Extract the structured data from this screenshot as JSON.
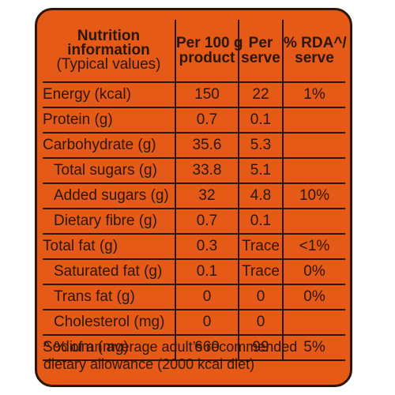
{
  "header": {
    "nutrient_line1": "Nutrition",
    "nutrient_line2": "information",
    "nutrient_line3": "(Typical values)",
    "per100_line1": "Per 100 g",
    "per100_line2": "product",
    "perserve_line1": "Per",
    "perserve_line2": "serve",
    "rda_line1": "% RDA^/",
    "rda_line2": "serve"
  },
  "rows": [
    {
      "name": "Energy (kcal)",
      "per100": "150",
      "perserve": "22",
      "rda": "1%"
    },
    {
      "name": "Protein (g)",
      "per100": "0.7",
      "perserve": "0.1",
      "rda": ""
    },
    {
      "name": "Carbohydrate (g)",
      "per100": "35.6",
      "perserve": "5.3",
      "rda": ""
    },
    {
      "name": "Total sugars (g)",
      "per100": "33.8",
      "perserve": "5.1",
      "rda": ""
    },
    {
      "name": "Added sugars (g)",
      "per100": "32",
      "perserve": "4.8",
      "rda": "10%"
    },
    {
      "name": "Dietary fibre (g)",
      "per100": "0.7",
      "perserve": "0.1",
      "rda": ""
    },
    {
      "name": "Total fat (g)",
      "per100": "0.3",
      "perserve": "Trace",
      "rda": "<1%"
    },
    {
      "name": "Saturated fat (g)",
      "per100": "0.1",
      "perserve": "Trace",
      "rda": "0%"
    },
    {
      "name": "Trans fat (g)",
      "per100": "0",
      "perserve": "0",
      "rda": "0%"
    },
    {
      "name": "Cholesterol (mg)",
      "per100": "0",
      "perserve": "0",
      "rda": ""
    },
    {
      "name": "Sodium (mg)",
      "per100": "660",
      "perserve": "99",
      "rda": "5%"
    }
  ],
  "footnote": {
    "line1": "^ % of an average adult’s recommended",
    "line2": "dietary allowance (2000 kcal diet)"
  },
  "colors": {
    "panel_background": "#E65A17",
    "ink": "#2b1608"
  }
}
